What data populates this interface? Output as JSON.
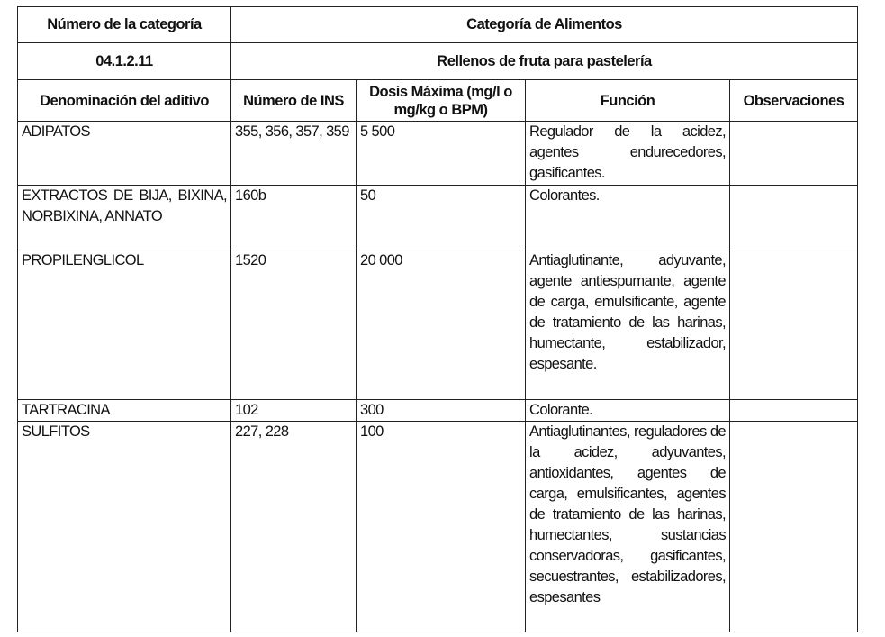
{
  "header": {
    "category_number_label": "Número de la categoría",
    "food_category_label": "Categoría de Alimentos",
    "category_number": "04.1.2.11",
    "food_category": "Rellenos de fruta para pastelería"
  },
  "columns": [
    "Denominación del aditivo",
    "Número de INS",
    "Dosis Máxima (mg/l o mg/kg o BPM)",
    "Función",
    "Observaciones"
  ],
  "rows": [
    {
      "name": "ADIPATOS",
      "ins": "355, 356, 357, 359",
      "dose": "5 500",
      "function": "Regulador de la acidez, agentes endurecedores, gasificantes.",
      "notes": ""
    },
    {
      "name": "EXTRACTOS DE BIJA, BIXINA, NORBIXINA, ANNATO",
      "ins": "160b",
      "dose": "50",
      "function": "Colorantes.",
      "notes": ""
    },
    {
      "name": "PROPILENGLICOL",
      "ins": "1520",
      "dose": "20 000",
      "function": "Antiaglutinante, adyuvante, agente antiespumante, agente de carga, emulsificante, agente de tratamiento de las harinas, humectante, estabilizador, espesante.",
      "notes": ""
    },
    {
      "name": "TARTRACINA",
      "ins": "102",
      "dose": "300",
      "function": "Colorante.",
      "notes": ""
    },
    {
      "name": "SULFITOS",
      "ins": "227, 228",
      "dose": "100",
      "function": "Antiaglutinantes, reguladores de la acidez, adyuvantes, antioxidantes, agentes de carga, emulsificantes, agentes de tratamiento de las harinas, humectantes, sustancias conservadoras, gasificantes, secuestrantes, estabilizadores, espesantes",
      "notes": ""
    }
  ]
}
